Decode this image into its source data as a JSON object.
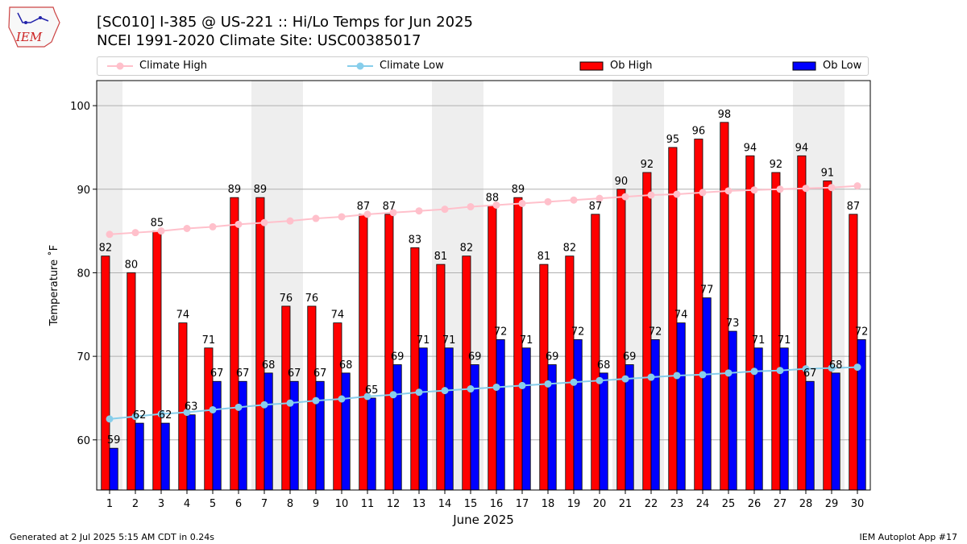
{
  "header": {
    "logo_text": "IEM",
    "title_line1": "[SC010] I-385 @ US-221  :: Hi/Lo Temps for Jun 2025",
    "title_line2": "NCEI 1991-2020 Climate Site: USC00385017"
  },
  "footer": {
    "generated": "Generated at 2 Jul 2025 5:15 AM CDT in 0.24s",
    "app": "IEM Autoplot App #17"
  },
  "colors": {
    "ob_high": "#ff0000",
    "ob_low": "#0000ff",
    "climate_high": "#ffc0cb",
    "climate_low": "#87ceeb",
    "weekend_shade": "#eeeeee",
    "grid": "#b0b0b0"
  },
  "chart_data": {
    "type": "bar",
    "xlabel": "June 2025",
    "ylabel": "Temperature ˚F",
    "ylim": [
      54,
      103
    ],
    "yticks": [
      60,
      70,
      80,
      90,
      100
    ],
    "grid": "horizontal",
    "legend_position": "top",
    "weekend_days": [
      1,
      7,
      8,
      14,
      15,
      21,
      22,
      28,
      29
    ],
    "categories": [
      1,
      2,
      3,
      4,
      5,
      6,
      7,
      8,
      9,
      10,
      11,
      12,
      13,
      14,
      15,
      16,
      17,
      18,
      19,
      20,
      21,
      22,
      23,
      24,
      25,
      26,
      27,
      28,
      29,
      30
    ],
    "series": [
      {
        "name": "Ob High",
        "kind": "bar",
        "values": [
          82,
          80,
          85,
          74,
          71,
          89,
          89,
          76,
          76,
          74,
          87,
          87,
          83,
          81,
          82,
          88,
          89,
          81,
          82,
          87,
          90,
          92,
          95,
          96,
          98,
          94,
          92,
          94,
          91,
          87
        ]
      },
      {
        "name": "Ob Low",
        "kind": "bar",
        "values": [
          59,
          62,
          62,
          63,
          67,
          67,
          68,
          67,
          67,
          68,
          65,
          69,
          71,
          71,
          69,
          72,
          71,
          69,
          72,
          68,
          69,
          72,
          74,
          77,
          73,
          71,
          71,
          67,
          68,
          72
        ]
      },
      {
        "name": "Climate High",
        "kind": "line",
        "values": [
          84.6,
          84.8,
          85.0,
          85.3,
          85.5,
          85.8,
          86.0,
          86.2,
          86.5,
          86.7,
          87.0,
          87.2,
          87.4,
          87.6,
          87.9,
          88.1,
          88.3,
          88.5,
          88.7,
          88.9,
          89.1,
          89.3,
          89.4,
          89.6,
          89.8,
          89.9,
          90.0,
          90.1,
          90.2,
          90.4
        ]
      },
      {
        "name": "Climate Low",
        "kind": "line",
        "values": [
          62.5,
          62.8,
          63.1,
          63.3,
          63.6,
          63.9,
          64.2,
          64.4,
          64.7,
          64.9,
          65.2,
          65.4,
          65.7,
          65.9,
          66.1,
          66.3,
          66.5,
          66.7,
          66.9,
          67.1,
          67.3,
          67.5,
          67.7,
          67.8,
          68.0,
          68.2,
          68.3,
          68.5,
          68.6,
          68.7
        ]
      }
    ]
  }
}
